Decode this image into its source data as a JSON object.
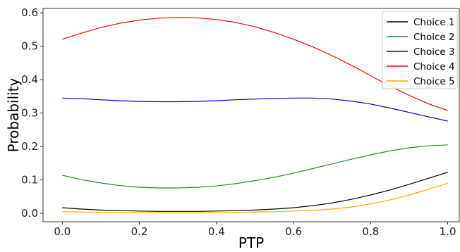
{
  "chart_data": {
    "type": "line",
    "title": "",
    "xlabel": "PTP",
    "ylabel": "Probability",
    "xlim": [
      -0.05,
      1.03
    ],
    "ylim": [
      -0.025,
      0.613
    ],
    "x_ticks": [
      0.0,
      0.2,
      0.4,
      0.6,
      0.8,
      1.0
    ],
    "x_tick_labels": [
      "0.0",
      "0.2",
      "0.4",
      "0.6",
      "0.8",
      "1.0"
    ],
    "y_ticks": [
      0.0,
      0.1,
      0.2,
      0.3,
      0.4,
      0.5,
      0.6
    ],
    "y_tick_labels": [
      "0.0",
      "0.1",
      "0.2",
      "0.3",
      "0.4",
      "0.5",
      "0.6"
    ],
    "grid": false,
    "legend_position": "top-right",
    "x": [
      0.0,
      0.05,
      0.1,
      0.15,
      0.2,
      0.25,
      0.3,
      0.35,
      0.4,
      0.45,
      0.5,
      0.55,
      0.6,
      0.65,
      0.7,
      0.75,
      0.8,
      0.85,
      0.9,
      0.95,
      1.0
    ],
    "series": [
      {
        "name": "Choice 1",
        "color": "#000000",
        "values": [
          0.017,
          0.013,
          0.01,
          0.008,
          0.007,
          0.006,
          0.006,
          0.006,
          0.007,
          0.008,
          0.01,
          0.013,
          0.017,
          0.023,
          0.031,
          0.042,
          0.055,
          0.07,
          0.087,
          0.105,
          0.123
        ]
      },
      {
        "name": "Choice 2",
        "color": "#228b22",
        "values": [
          0.114,
          0.101,
          0.091,
          0.083,
          0.078,
          0.076,
          0.076,
          0.078,
          0.082,
          0.089,
          0.098,
          0.108,
          0.12,
          0.134,
          0.148,
          0.162,
          0.175,
          0.187,
          0.196,
          0.202,
          0.205
        ]
      },
      {
        "name": "Choice 3",
        "color": "#0000cd",
        "values": [
          0.345,
          0.343,
          0.34,
          0.337,
          0.335,
          0.334,
          0.334,
          0.335,
          0.337,
          0.34,
          0.342,
          0.344,
          0.345,
          0.345,
          0.342,
          0.336,
          0.327,
          0.315,
          0.302,
          0.289,
          0.276
        ]
      },
      {
        "name": "Choice 4",
        "color": "#ff0000",
        "values": [
          0.521,
          0.539,
          0.556,
          0.569,
          0.578,
          0.584,
          0.586,
          0.585,
          0.58,
          0.571,
          0.558,
          0.541,
          0.521,
          0.498,
          0.472,
          0.443,
          0.412,
          0.381,
          0.353,
          0.328,
          0.308
        ]
      },
      {
        "name": "Choice 5",
        "color": "#ffa500",
        "values": [
          0.005,
          0.004,
          0.003,
          0.002,
          0.002,
          0.002,
          0.002,
          0.002,
          0.002,
          0.003,
          0.004,
          0.005,
          0.007,
          0.009,
          0.013,
          0.019,
          0.028,
          0.04,
          0.055,
          0.072,
          0.09
        ]
      }
    ]
  }
}
